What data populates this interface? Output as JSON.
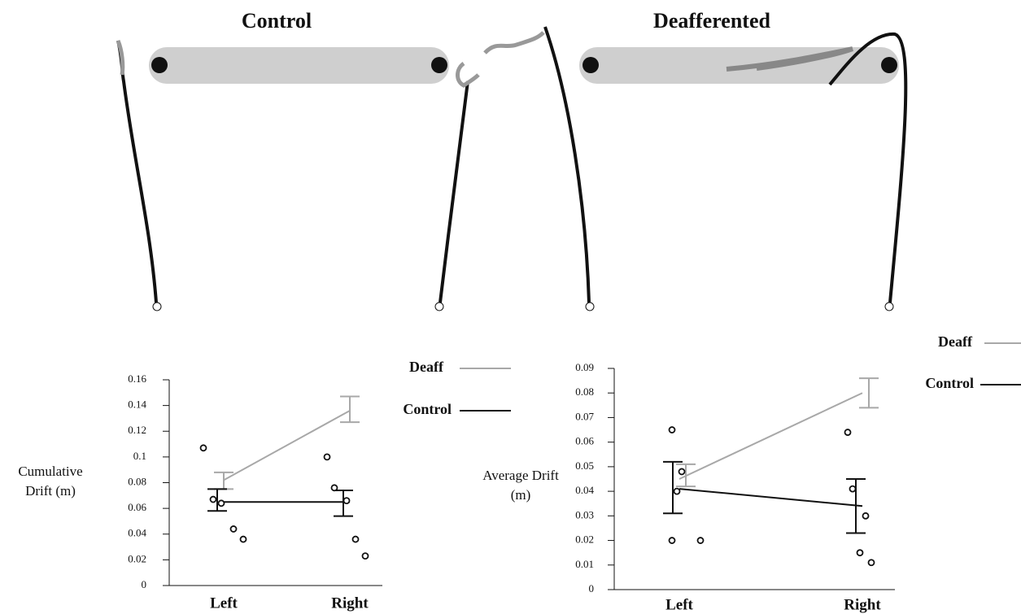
{
  "panels": [
    "Control",
    "Deafferented"
  ],
  "chart_data": [
    {
      "type": "line",
      "categories": [
        "Left",
        "Right"
      ],
      "ylabel": [
        "Cumulative",
        "Drift (m)"
      ],
      "ylim": [
        0,
        0.16
      ],
      "yticks": [
        0,
        0.02,
        0.04,
        0.06,
        0.08,
        0.1,
        0.12,
        0.14,
        0.16
      ],
      "series": [
        {
          "name": "Deaff",
          "color": "#a8a8a8",
          "values": [
            0.082,
            0.136
          ],
          "error_high": [
            0.088,
            0.147
          ],
          "error_low": [
            0.075,
            0.127
          ]
        },
        {
          "name": "Control",
          "color": "#111111",
          "values": [
            0.065,
            0.065
          ],
          "error_high": [
            0.075,
            0.074
          ],
          "error_low": [
            0.058,
            0.054
          ]
        }
      ],
      "points": [
        [
          0.107,
          0.067,
          0.064,
          0.044,
          0.036
        ],
        [
          0.1,
          0.076,
          0.066,
          0.036,
          0.023
        ]
      ]
    },
    {
      "type": "line",
      "categories": [
        "Left",
        "Right"
      ],
      "ylabel": [
        "Average Drift",
        "(m)"
      ],
      "ylim": [
        0,
        0.09
      ],
      "yticks": [
        0,
        0.01,
        0.02,
        0.03,
        0.04,
        0.05,
        0.06,
        0.07,
        0.08,
        0.09
      ],
      "series": [
        {
          "name": "Deaff",
          "color": "#a8a8a8",
          "values": [
            0.045,
            0.08
          ],
          "error_high": [
            0.051,
            0.086
          ],
          "error_low": [
            0.042,
            0.074
          ]
        },
        {
          "name": "Control",
          "color": "#111111",
          "values": [
            0.041,
            0.034
          ],
          "error_high": [
            0.052,
            0.045
          ],
          "error_low": [
            0.031,
            0.023
          ]
        }
      ],
      "points": [
        [
          0.065,
          0.048,
          0.04,
          0.02,
          0.02
        ],
        [
          0.064,
          0.041,
          0.03,
          0.015,
          0.011
        ]
      ]
    }
  ]
}
